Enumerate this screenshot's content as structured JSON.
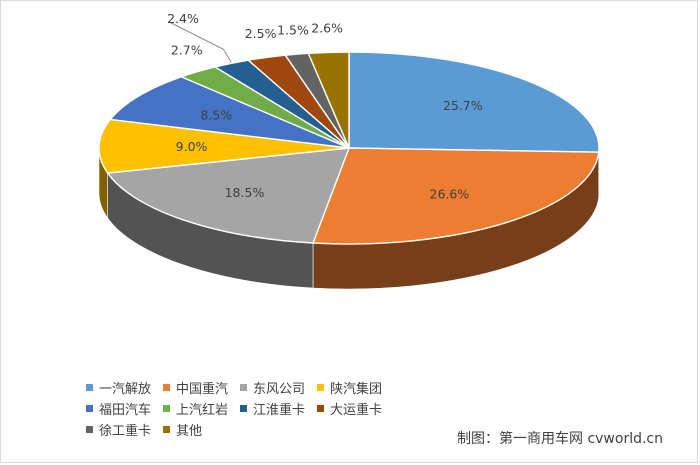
{
  "chart_data": {
    "type": "pie",
    "title": "",
    "legend_position": "bottom",
    "slices": [
      {
        "name": "一汽解放",
        "value": 25.7,
        "label": "25.7%",
        "color": "#5B9BD5"
      },
      {
        "name": "中国重汽",
        "value": 26.6,
        "label": "26.6%",
        "color": "#ED7D31"
      },
      {
        "name": "东风公司",
        "value": 18.5,
        "label": "18.5%",
        "color": "#A5A5A5"
      },
      {
        "name": "陕汽集团",
        "value": 9.0,
        "label": "9.0%",
        "color": "#FFC000"
      },
      {
        "name": "福田汽车",
        "value": 8.5,
        "label": "8.5%",
        "color": "#4472C4"
      },
      {
        "name": "上汽红岩",
        "value": 2.7,
        "label": "2.7%",
        "color": "#70AD47"
      },
      {
        "name": "江淮重卡",
        "value": 2.4,
        "label": "2.4%",
        "color": "#255E91"
      },
      {
        "name": "大运重卡",
        "value": 2.5,
        "label": "2.5%",
        "color": "#9E480E"
      },
      {
        "name": "徐工重卡",
        "value": 1.5,
        "label": "1.5%",
        "color": "#636363"
      },
      {
        "name": "其他",
        "value": 2.6,
        "label": "2.6%",
        "color": "#997300"
      }
    ]
  },
  "credit": "制图：第一商用车网 cvworld.cn"
}
